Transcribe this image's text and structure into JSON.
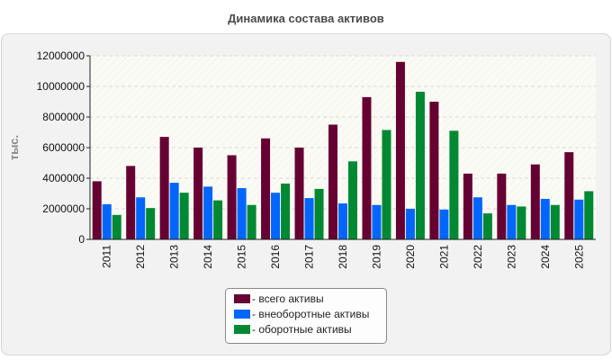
{
  "chart_data": {
    "type": "bar",
    "title": "Динамика состава активов",
    "ylabel": "тыс.",
    "xlabel": "",
    "categories": [
      "2011",
      "2012",
      "2013",
      "2014",
      "2015",
      "2016",
      "2017",
      "2018",
      "2019",
      "2020",
      "2021",
      "2022",
      "2023",
      "2024",
      "2025"
    ],
    "series": [
      {
        "name": "- всего активы",
        "color": "#660033",
        "values": [
          3800000,
          4800000,
          6700000,
          6000000,
          5500000,
          6600000,
          6000000,
          7500000,
          9300000,
          11600000,
          9000000,
          4300000,
          4300000,
          4900000,
          5700000
        ]
      },
      {
        "name": "- внеоборотные активы",
        "color": "#0066ff",
        "values": [
          2300000,
          2750000,
          3700000,
          3450000,
          3350000,
          3050000,
          2700000,
          2350000,
          2250000,
          2000000,
          1950000,
          2750000,
          2250000,
          2650000,
          2600000
        ]
      },
      {
        "name": "- оборотные активы",
        "color": "#008833",
        "values": [
          1600000,
          2050000,
          3050000,
          2550000,
          2250000,
          3650000,
          3300000,
          5100000,
          7150000,
          9650000,
          7100000,
          1700000,
          2150000,
          2250000,
          3150000
        ]
      }
    ],
    "ylim": [
      0,
      12000000
    ],
    "yticks": [
      0,
      2000000,
      4000000,
      6000000,
      8000000,
      10000000,
      12000000
    ],
    "grid": true,
    "legend_position": "bottom-center"
  }
}
